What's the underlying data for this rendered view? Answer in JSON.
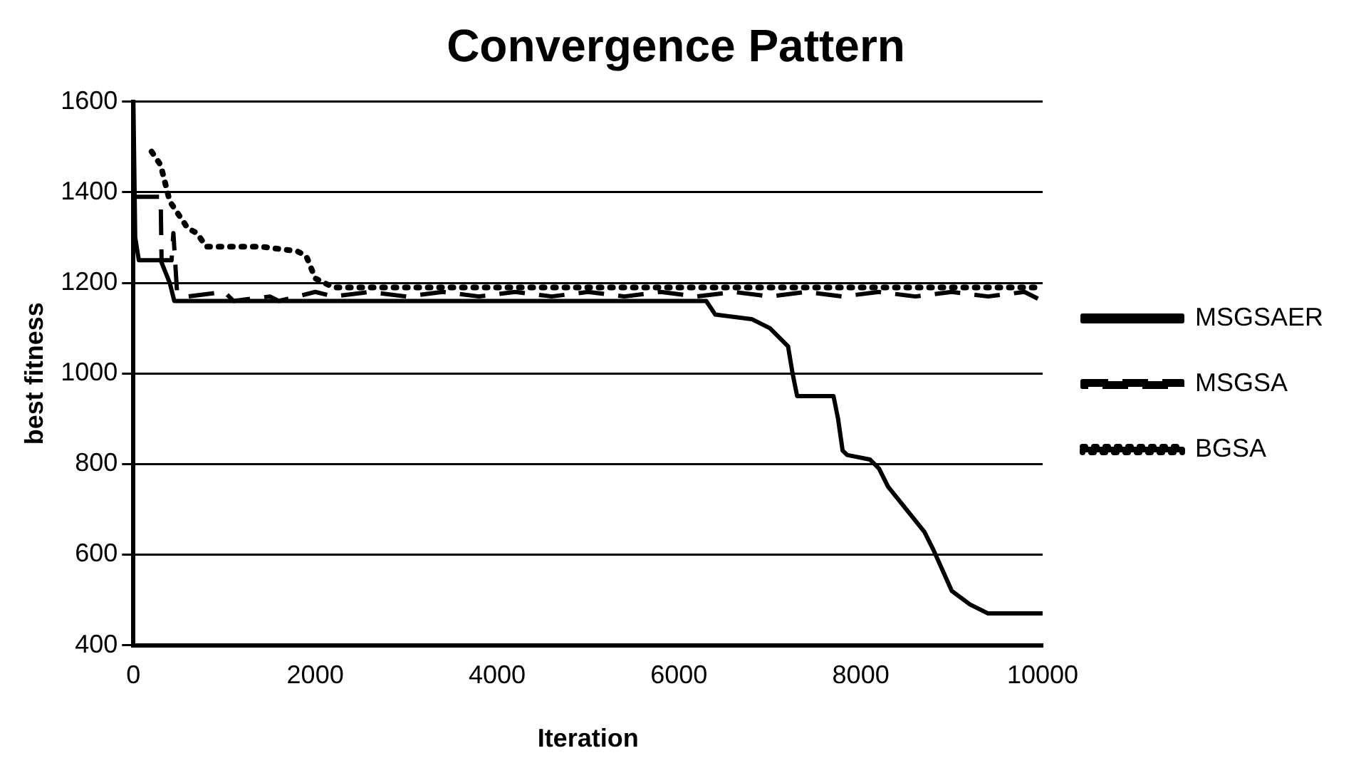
{
  "chart_data": {
    "type": "line",
    "title": "Convergence Pattern",
    "xlabel": "Iteration",
    "ylabel": "best fitness",
    "xlim": [
      0,
      10000
    ],
    "xticks": [
      0,
      2000,
      4000,
      6000,
      8000,
      10000
    ],
    "ylim": [
      400,
      1600
    ],
    "yticks": [
      400,
      600,
      800,
      1000,
      1200,
      1400,
      1600
    ],
    "grid": "y",
    "legend": "right",
    "marker": "none",
    "series": [
      {
        "name": "MSGSAER",
        "color": "#000000",
        "line_style": "solid",
        "x": [
          0,
          20,
          60,
          100,
          300,
          400,
          450,
          6300,
          6400,
          6800,
          7000,
          7100,
          7200,
          7250,
          7300,
          7700,
          7750,
          7800,
          7850,
          8100,
          8200,
          8300,
          8500,
          8700,
          8800,
          9000,
          9200,
          9400,
          9600,
          10000
        ],
        "values": [
          1600,
          1300,
          1250,
          1250,
          1250,
          1200,
          1160,
          1160,
          1130,
          1120,
          1100,
          1080,
          1060,
          1000,
          950,
          950,
          900,
          830,
          820,
          810,
          790,
          750,
          700,
          650,
          610,
          520,
          490,
          470,
          470,
          470
        ]
      },
      {
        "name": "MSGSA",
        "color": "#000000",
        "line_style": "dashed",
        "x": [
          0,
          300,
          310,
          420,
          440,
          480,
          600,
          1000,
          1100,
          1500,
          1600,
          2000,
          2200,
          2600,
          3000,
          3400,
          3800,
          4200,
          4600,
          5000,
          5400,
          5800,
          6200,
          6600,
          7000,
          7400,
          7800,
          8200,
          8600,
          9000,
          9400,
          9800,
          10000
        ],
        "values": [
          1390,
          1390,
          1250,
          1250,
          1310,
          1180,
          1170,
          1180,
          1160,
          1170,
          1160,
          1180,
          1170,
          1180,
          1170,
          1180,
          1170,
          1180,
          1170,
          1180,
          1170,
          1180,
          1170,
          1180,
          1170,
          1180,
          1170,
          1180,
          1170,
          1180,
          1170,
          1180,
          1160
        ]
      },
      {
        "name": "BGSA",
        "color": "#000000",
        "line_style": "dotted",
        "x": [
          200,
          300,
          350,
          400,
          500,
          600,
          700,
          800,
          1000,
          1400,
          1800,
          1900,
          2000,
          2200,
          10000
        ],
        "values": [
          1490,
          1460,
          1420,
          1380,
          1350,
          1320,
          1310,
          1280,
          1280,
          1280,
          1270,
          1260,
          1210,
          1190,
          1190
        ]
      }
    ]
  }
}
